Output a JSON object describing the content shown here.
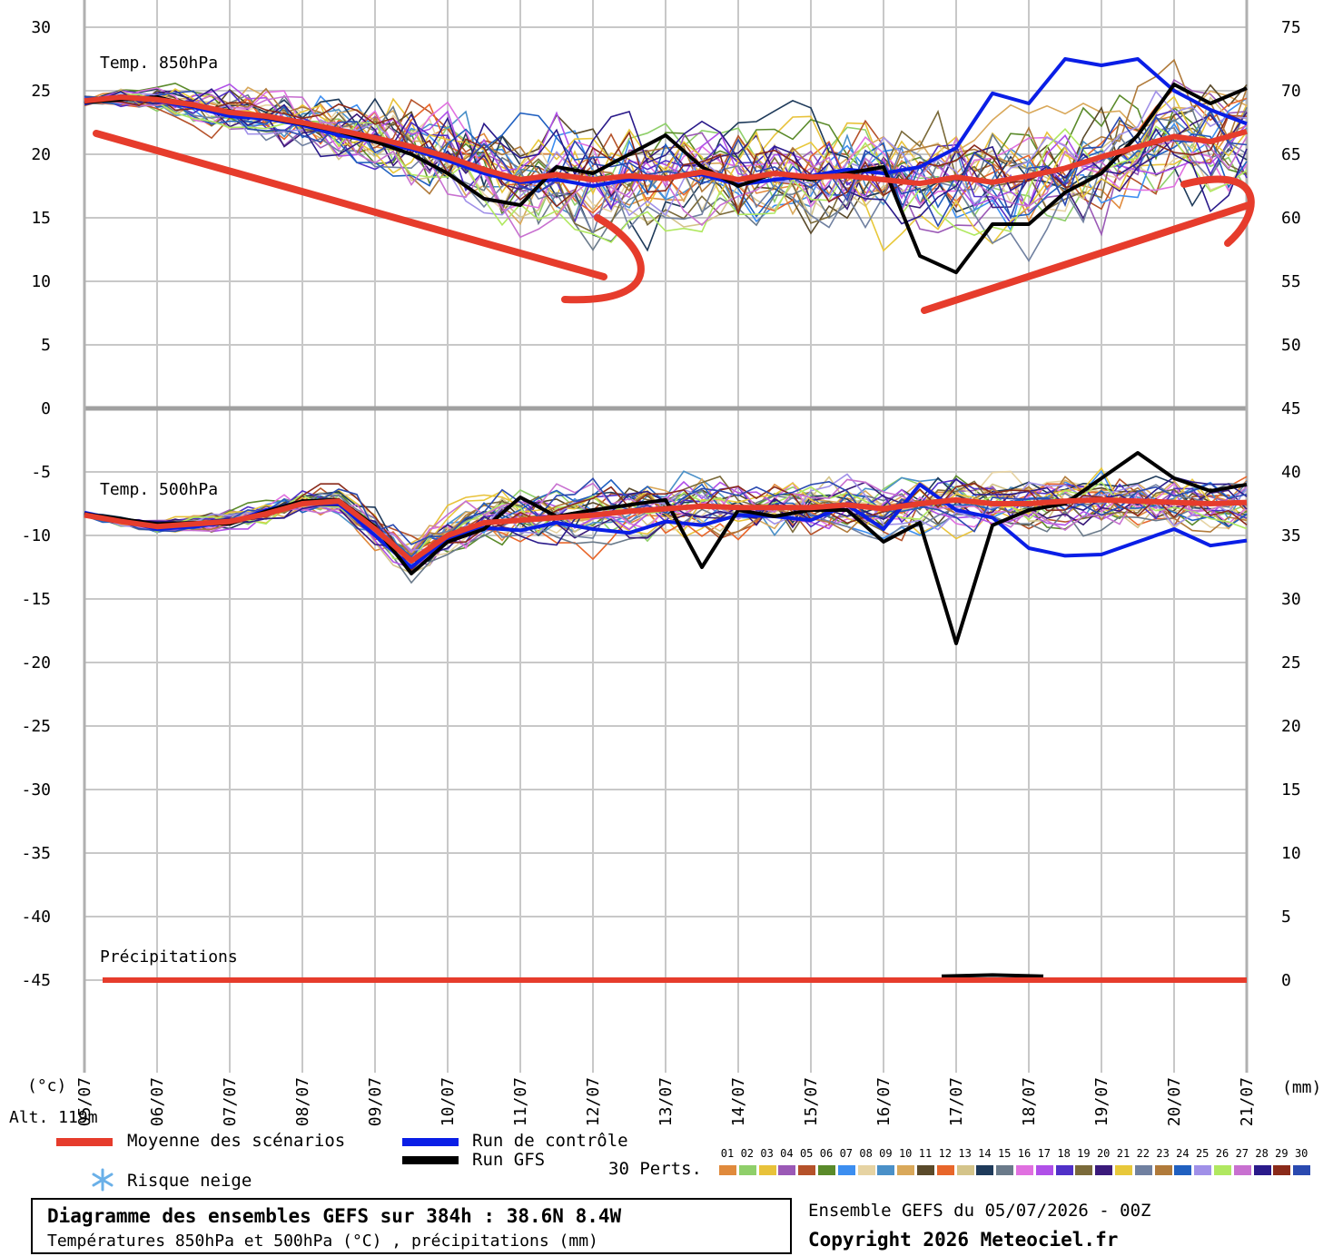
{
  "chart_data": {
    "type": "line",
    "title": "Diagramme des ensembles GEFS sur 384h : 38.6N 8.4W",
    "subtitle": "Températures 850hPa et 500hPa (°C) , précipitations (mm)",
    "run_info": "Ensemble GEFS du 05/07/2026 - 00Z",
    "copyright": "Copyright 2026 Meteociel.fr",
    "left_axis_unit": "(°c)",
    "right_axis_unit": "(mm)",
    "altitude_label": "Alt. 119m",
    "left_ticks": [
      "30",
      "25",
      "20",
      "15",
      "10",
      "5",
      "0",
      "-5",
      "-10",
      "-15",
      "-20",
      "-25",
      "-30",
      "-35",
      "-40",
      "-45"
    ],
    "right_ticks": [
      "75",
      "70",
      "65",
      "60",
      "55",
      "50",
      "45",
      "40",
      "35",
      "30",
      "25",
      "20",
      "15",
      "10",
      "5",
      "0"
    ],
    "y_left_range": [
      -50,
      30
    ],
    "y_right_range": [
      -5,
      75
    ],
    "x_ticks": [
      "05/07",
      "06/07",
      "07/07",
      "08/07",
      "09/07",
      "10/07",
      "11/07",
      "12/07",
      "13/07",
      "14/07",
      "15/07",
      "16/07",
      "17/07",
      "18/07",
      "19/07",
      "20/07",
      "21/07"
    ],
    "x_range_days": [
      0,
      16
    ],
    "panel_labels": [
      "Temp. 850hPa",
      "Temp. 500hPa",
      "Précipitations"
    ],
    "legend": {
      "mean": "Moyenne des scénarios",
      "control": "Run de contrôle",
      "gfs": "Run GFS",
      "snow": "Risque neige",
      "perts": "30 Perts."
    },
    "colors": {
      "mean": "#e63c2c",
      "control": "#0a1ee6",
      "gfs": "#000000"
    },
    "perturbation_ids": [
      "01",
      "02",
      "03",
      "04",
      "05",
      "06",
      "07",
      "08",
      "09",
      "10",
      "11",
      "12",
      "13",
      "14",
      "15",
      "16",
      "17",
      "18",
      "19",
      "20",
      "21",
      "22",
      "23",
      "24",
      "25",
      "26",
      "27",
      "28",
      "29",
      "30"
    ],
    "perturbation_colors": [
      "#e08a3c",
      "#8fcf6a",
      "#e8c23a",
      "#9b59b6",
      "#b5522a",
      "#5a8a2a",
      "#3c8ef0",
      "#e6d3a3",
      "#4a90c8",
      "#d9a85a",
      "#5a4a2a",
      "#e8662a",
      "#d4c48a",
      "#1e3a5a",
      "#6a7a8a",
      "#e070e0",
      "#b050e8",
      "#5030c8",
      "#7a6a3a",
      "#3a1a7a",
      "#e8c83a",
      "#7080a0",
      "#b07a3a",
      "#2060c0",
      "#a090e8",
      "#b0e860",
      "#c870d0",
      "#2a1a8a",
      "#8a2a1a",
      "#2a4ab0"
    ],
    "series": [
      {
        "name": "Moyenne des scénarios",
        "panel": "850hPa",
        "x": [
          0,
          0.5,
          1,
          1.5,
          2,
          2.5,
          3,
          3.5,
          4,
          4.5,
          5,
          5.5,
          6,
          6.5,
          7,
          7.5,
          8,
          8.5,
          9,
          9.5,
          10,
          10.5,
          11,
          11.5,
          12,
          12.5,
          13,
          13.5,
          14,
          14.5,
          15,
          15.5,
          16
        ],
        "values": [
          24.2,
          24.5,
          24.3,
          23.9,
          23.3,
          23.0,
          22.5,
          21.9,
          21.3,
          20.6,
          19.8,
          18.8,
          18.0,
          18.4,
          18.0,
          18.3,
          18.1,
          18.6,
          18.0,
          18.5,
          18.2,
          18.3,
          18.0,
          17.7,
          18.2,
          17.8,
          18.3,
          18.9,
          19.8,
          20.6,
          21.4,
          21.0,
          21.8
        ]
      },
      {
        "name": "Moyenne des scénarios",
        "panel": "500hPa",
        "x": [
          0,
          0.5,
          1,
          1.5,
          2,
          2.5,
          3,
          3.5,
          4,
          4.5,
          5,
          5.5,
          6,
          6.5,
          7,
          7.5,
          8,
          8.5,
          9,
          9.5,
          10,
          10.5,
          11,
          11.5,
          12,
          12.5,
          13,
          13.5,
          14,
          14.5,
          15,
          15.5,
          16
        ],
        "values": [
          -8.4,
          -8.9,
          -9.3,
          -9.1,
          -8.9,
          -8.3,
          -7.5,
          -7.3,
          -9.5,
          -12.0,
          -10.0,
          -9.0,
          -8.8,
          -8.6,
          -8.4,
          -8.1,
          -7.9,
          -7.7,
          -7.8,
          -7.8,
          -7.8,
          -7.6,
          -7.9,
          -7.5,
          -7.2,
          -7.5,
          -7.5,
          -7.3,
          -7.2,
          -7.3,
          -7.4,
          -7.5,
          -7.4
        ]
      },
      {
        "name": "Moyenne des scénarios",
        "panel": "precip",
        "x": [
          0.25,
          16
        ],
        "values": [
          0,
          0
        ]
      },
      {
        "name": "Run de contrôle",
        "panel": "850hPa",
        "x": [
          0,
          0.5,
          1,
          1.5,
          2,
          2.5,
          3,
          3.5,
          4,
          4.5,
          5,
          5.5,
          6,
          6.5,
          7,
          7.5,
          8,
          8.5,
          9,
          9.5,
          10,
          10.5,
          11,
          11.5,
          12,
          12.5,
          13,
          13.5,
          14,
          14.5,
          15,
          15.5,
          16
        ],
        "values": [
          24.0,
          24.6,
          24.2,
          23.7,
          23.0,
          22.8,
          22.3,
          21.5,
          21.0,
          20.4,
          19.5,
          18.5,
          17.8,
          18.0,
          17.5,
          18.0,
          18.2,
          18.4,
          17.6,
          18.0,
          18.3,
          18.8,
          18.5,
          19.0,
          20.5,
          24.8,
          24.0,
          27.5,
          27.0,
          27.5,
          25.0,
          23.5,
          22.4
        ]
      },
      {
        "name": "Run de contrôle",
        "panel": "500hPa",
        "x": [
          0,
          0.5,
          1,
          1.5,
          2,
          2.5,
          3,
          3.5,
          4,
          4.5,
          5,
          5.5,
          6,
          6.5,
          7,
          7.5,
          8,
          8.5,
          9,
          9.5,
          10,
          10.5,
          11,
          11.5,
          12,
          12.5,
          13,
          13.5,
          14,
          14.5,
          15,
          15.5,
          16
        ],
        "values": [
          -8.2,
          -8.8,
          -9.5,
          -9.3,
          -9.0,
          -8.0,
          -7.4,
          -7.5,
          -10.0,
          -12.5,
          -10.2,
          -9.4,
          -9.6,
          -9.0,
          -9.5,
          -9.8,
          -8.9,
          -9.2,
          -8.4,
          -8.5,
          -8.8,
          -7.6,
          -9.5,
          -6.0,
          -8.0,
          -8.6,
          -11.0,
          -11.6,
          -11.5,
          -10.5,
          -9.5,
          -10.8,
          -10.4
        ]
      },
      {
        "name": "Run GFS",
        "panel": "850hPa",
        "x": [
          0,
          0.5,
          1,
          1.5,
          2,
          2.5,
          3,
          3.5,
          4,
          4.5,
          5,
          5.5,
          6,
          6.5,
          7,
          7.5,
          8,
          8.5,
          9,
          9.5,
          10,
          10.5,
          11,
          11.5,
          12,
          12.5,
          13,
          13.5,
          14,
          14.5,
          15,
          15.5,
          16
        ],
        "values": [
          24.1,
          24.3,
          24.5,
          23.8,
          23.4,
          22.9,
          22.4,
          21.8,
          21.0,
          20.0,
          18.5,
          16.5,
          16.0,
          19.0,
          18.5,
          20.0,
          21.5,
          19.0,
          17.5,
          18.5,
          18.0,
          18.5,
          19.0,
          12.0,
          10.7,
          14.5,
          14.5,
          17.0,
          18.5,
          21.5,
          25.5,
          24.0,
          25.2
        ]
      },
      {
        "name": "Run GFS",
        "panel": "500hPa",
        "x": [
          0,
          0.5,
          1,
          1.5,
          2,
          2.5,
          3,
          3.5,
          4,
          4.5,
          5,
          5.5,
          6,
          6.5,
          7,
          7.5,
          8,
          8.5,
          9,
          9.5,
          10,
          10.5,
          11,
          11.5,
          12,
          12.5,
          13,
          13.5,
          14,
          14.5,
          15,
          15.5,
          16
        ],
        "values": [
          -8.3,
          -8.7,
          -9.1,
          -9.0,
          -9.1,
          -8.1,
          -7.3,
          -7.2,
          -9.3,
          -13.0,
          -10.5,
          -9.5,
          -7.0,
          -8.5,
          -8.0,
          -7.6,
          -7.2,
          -12.5,
          -8.0,
          -8.5,
          -8.0,
          -8.0,
          -10.5,
          -9.0,
          -18.5,
          -9.2,
          -8.0,
          -7.5,
          -5.5,
          -3.5,
          -5.5,
          -6.5,
          -6.0
        ]
      },
      {
        "name": "Run GFS",
        "panel": "precip",
        "x": [
          11.8,
          12.5,
          13.2
        ],
        "values": [
          0.3,
          0.4,
          0.3
        ]
      }
    ]
  }
}
